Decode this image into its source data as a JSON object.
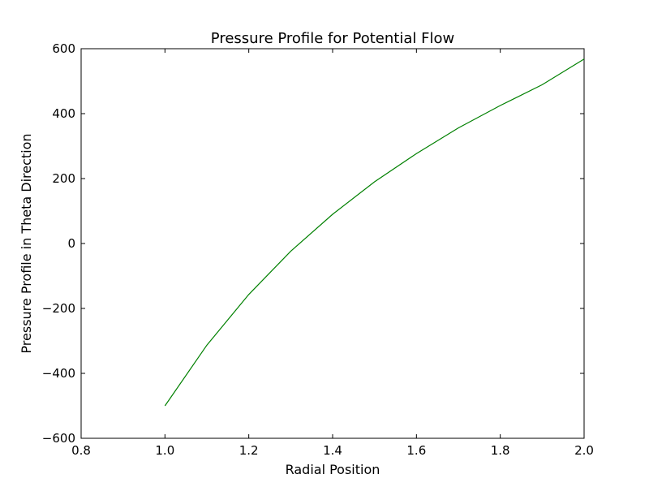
{
  "chart_data": {
    "type": "line",
    "title": "Pressure Profile for Potential Flow",
    "xlabel": "Radial Position",
    "ylabel": "Pressure Profile in Theta Direction",
    "xlim": [
      0.8,
      2.0
    ],
    "ylim": [
      -600,
      600
    ],
    "xticks": [
      0.8,
      1.0,
      1.2,
      1.4,
      1.6,
      1.8,
      2.0
    ],
    "xtick_labels": [
      "0.8",
      "1.0",
      "1.2",
      "1.4",
      "1.6",
      "1.8",
      "2.0"
    ],
    "yticks": [
      -600,
      -400,
      -200,
      0,
      200,
      400,
      600
    ],
    "ytick_labels": [
      "−600",
      "−400",
      "−200",
      "0",
      "200",
      "400",
      "600"
    ],
    "grid": false,
    "legend": "none",
    "series": [
      {
        "color": "#008000",
        "x": [
          1.0,
          1.1,
          1.2,
          1.3,
          1.4,
          1.5,
          1.6,
          1.7,
          1.8,
          1.9,
          2.0
        ],
        "y": [
          -500,
          -313,
          -157,
          -24,
          90,
          190,
          277,
          356,
          425,
          489,
          568
        ]
      }
    ]
  }
}
